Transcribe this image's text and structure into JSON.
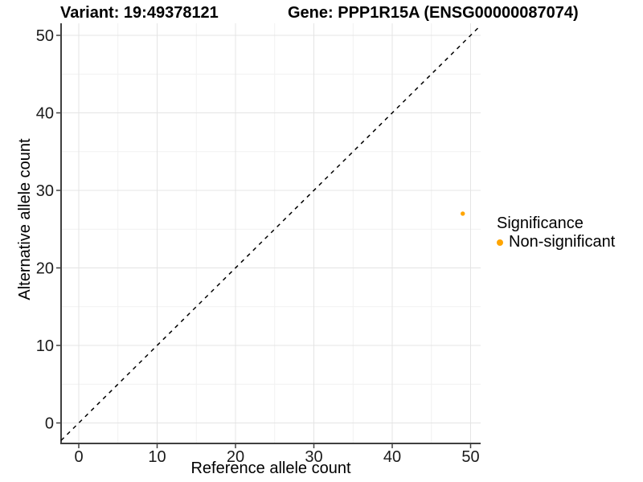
{
  "chart_data": {
    "type": "scatter",
    "titles": {
      "left": "Variant: 19:49378121",
      "right": "Gene: PPP1R15A (ENSG00000087074)"
    },
    "xlabel": "Reference allele count",
    "ylabel": "Alternative allele count",
    "x_ticks": [
      0,
      10,
      20,
      30,
      40,
      50
    ],
    "y_ticks": [
      0,
      10,
      20,
      30,
      40,
      50
    ],
    "x_minor_ticks": [
      5,
      15,
      25,
      35,
      45
    ],
    "y_minor_ticks": [
      5,
      15,
      25,
      35,
      45
    ],
    "xlim": [
      -2.3,
      51.3
    ],
    "ylim": [
      -2.6,
      51.6
    ],
    "grid": true,
    "reference_line": {
      "type": "identity y=x",
      "style": "dashed",
      "color": "#000000"
    },
    "series": [
      {
        "name": "Non-significant",
        "color": "#FFA500",
        "points": [
          {
            "x": 49,
            "y": 27
          }
        ]
      }
    ],
    "legend": {
      "title": "Significance",
      "position": "right",
      "items": [
        {
          "label": "Non-significant",
          "color": "#FFA500"
        }
      ]
    },
    "style": {
      "grid_major": "#E4E4E4",
      "grid_minor": "#F1F1F1",
      "axis_line": "#404040",
      "tick_label_color": "#1A1A1A",
      "point_radius": 2.7,
      "legend_marker": "circle"
    }
  }
}
